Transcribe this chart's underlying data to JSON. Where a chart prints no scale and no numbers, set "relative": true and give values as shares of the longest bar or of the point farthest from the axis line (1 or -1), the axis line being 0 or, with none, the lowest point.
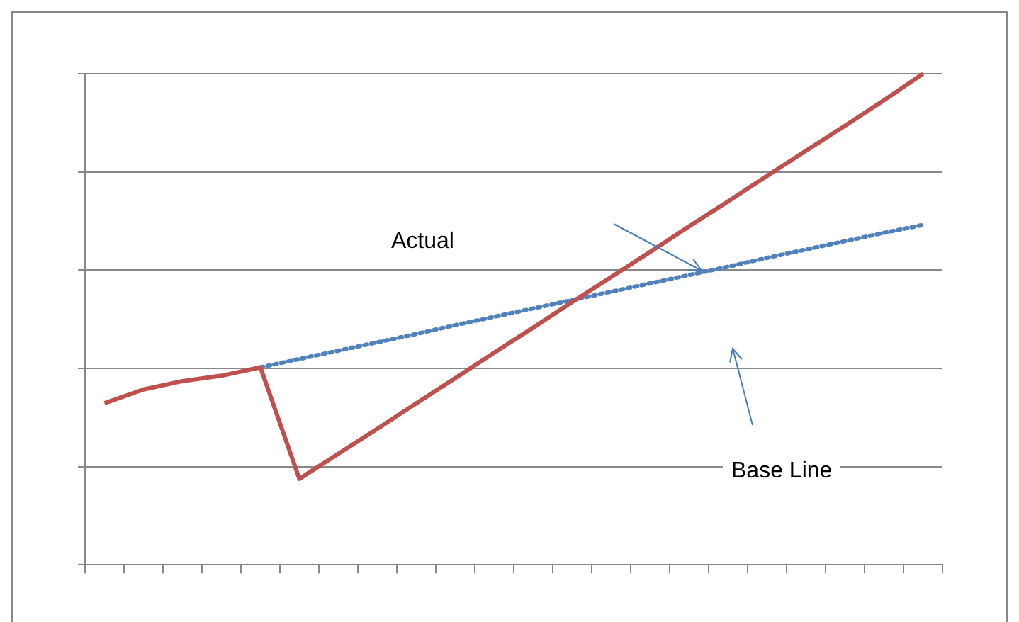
{
  "chart_data": {
    "type": "line",
    "relative": true,
    "grid": "y",
    "marker": "none",
    "categories": [
      null,
      null,
      null,
      null,
      null,
      null,
      null,
      null,
      null,
      null,
      null,
      null,
      null,
      null,
      null,
      null,
      null,
      null,
      null,
      null,
      null,
      null
    ],
    "series": [
      {
        "color": "#c0504d",
        "line_style": "solid",
        "values": [
          0.329,
          0.357,
          0.374,
          0.385,
          0.402,
          0.175,
          0.226,
          0.277,
          0.329,
          0.38,
          0.432,
          0.483,
          0.535,
          0.586,
          0.637,
          0.689,
          0.74,
          0.792,
          0.843,
          0.894,
          0.946,
          1
        ]
      },
      {
        "color": "#4f81bd",
        "line_style": "dotted",
        "values": [
          null,
          null,
          null,
          null,
          0.402,
          0.419,
          0.436,
          0.453,
          0.47,
          0.488,
          0.505,
          0.522,
          0.539,
          0.556,
          0.573,
          0.59,
          0.607,
          0.625,
          0.642,
          0.659,
          0.676,
          0.692
        ]
      }
    ],
    "annotations": [
      "Actual",
      "Base Line"
    ]
  }
}
